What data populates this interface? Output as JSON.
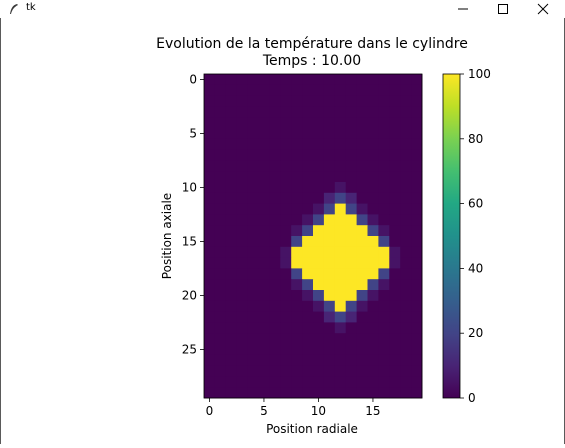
{
  "window": {
    "title": "tk",
    "app_icon": "feather-icon",
    "controls": [
      "minimize-icon",
      "maximize-icon",
      "close-icon"
    ]
  },
  "chart_data": {
    "type": "heatmap",
    "title": "Evolution de la température dans le cylindre",
    "subtitle": "Temps : 10.00",
    "xlabel": "Position radiale",
    "ylabel": "Position axiale",
    "x_ticks": [
      "0",
      "5",
      "10",
      "15"
    ],
    "y_ticks": [
      "0",
      "5",
      "10",
      "15",
      "20",
      "25"
    ],
    "colorbar_ticks": [
      "0",
      "20",
      "40",
      "60",
      "80",
      "100"
    ],
    "colormap": "viridis",
    "vmin": 0,
    "vmax": 100,
    "n_rows": 30,
    "n_cols": 20,
    "hot_center": [
      12,
      16.5
    ],
    "hot_shape": "diamond",
    "values_description_rows": [
      [
        0,
        0,
        0,
        0,
        0,
        0,
        0,
        0,
        0,
        0,
        0,
        0,
        0,
        0,
        0,
        0,
        0,
        0,
        0,
        0
      ],
      [
        0,
        0,
        0,
        0,
        0,
        0,
        0,
        0,
        0,
        0,
        0,
        0,
        0,
        0,
        0,
        0,
        0,
        0,
        0,
        0
      ],
      [
        0,
        0,
        0,
        0,
        0,
        0,
        0,
        0,
        0,
        0,
        0,
        0,
        0,
        0,
        0,
        0,
        0,
        0,
        0,
        0
      ],
      [
        0,
        0,
        0,
        0,
        0,
        0,
        0,
        0,
        0,
        0,
        0,
        0,
        0,
        0,
        0,
        0,
        0,
        0,
        0,
        0
      ],
      [
        0,
        0,
        0,
        0,
        0,
        0,
        0,
        0,
        0,
        0,
        0,
        0,
        0,
        0,
        0,
        0,
        0,
        0,
        0,
        0
      ],
      [
        0,
        0,
        0,
        0,
        0,
        0,
        0,
        0,
        0,
        0,
        0,
        0,
        0,
        0,
        0,
        0,
        0,
        0,
        0,
        0
      ],
      [
        0,
        0,
        0,
        0,
        0,
        0,
        0,
        0,
        0,
        0,
        0,
        0,
        0,
        0,
        0,
        0,
        0,
        0,
        0,
        0
      ],
      [
        0,
        0,
        0,
        0,
        0,
        0,
        0,
        0,
        0,
        0,
        0,
        0,
        0,
        0,
        0,
        0,
        0,
        0,
        0,
        0
      ],
      [
        0,
        0,
        0,
        0,
        0,
        0,
        0,
        0,
        0,
        0,
        0,
        0,
        0,
        0,
        0,
        0,
        0,
        0,
        0,
        0
      ],
      [
        0,
        0,
        0,
        0,
        0,
        0,
        0,
        0,
        0,
        0,
        0,
        0,
        0,
        0,
        0,
        0,
        0,
        0,
        0,
        0
      ],
      [
        0,
        0,
        0,
        0,
        0,
        0,
        0,
        0,
        0,
        0,
        0,
        0,
        5,
        0,
        0,
        0,
        0,
        0,
        0,
        0
      ],
      [
        0,
        0,
        0,
        0,
        0,
        0,
        0,
        0,
        0,
        0,
        0,
        10,
        20,
        10,
        0,
        0,
        0,
        0,
        0,
        0
      ],
      [
        0,
        0,
        0,
        0,
        0,
        0,
        0,
        0,
        0,
        0,
        5,
        20,
        100,
        20,
        5,
        0,
        0,
        0,
        0,
        0
      ],
      [
        0,
        0,
        0,
        0,
        0,
        0,
        0,
        0,
        0,
        5,
        20,
        100,
        100,
        100,
        20,
        5,
        0,
        0,
        0,
        0
      ],
      [
        0,
        0,
        0,
        0,
        0,
        0,
        0,
        0,
        5,
        20,
        100,
        100,
        100,
        100,
        100,
        20,
        5,
        0,
        0,
        0
      ],
      [
        0,
        0,
        0,
        0,
        0,
        0,
        0,
        0,
        20,
        100,
        100,
        100,
        100,
        100,
        100,
        100,
        20,
        0,
        0,
        0
      ],
      [
        0,
        0,
        0,
        0,
        0,
        0,
        0,
        5,
        100,
        100,
        100,
        100,
        100,
        100,
        100,
        100,
        100,
        5,
        0,
        0
      ],
      [
        0,
        0,
        0,
        0,
        0,
        0,
        0,
        5,
        100,
        100,
        100,
        100,
        100,
        100,
        100,
        100,
        100,
        5,
        0,
        0
      ],
      [
        0,
        0,
        0,
        0,
        0,
        0,
        0,
        0,
        20,
        100,
        100,
        100,
        100,
        100,
        100,
        100,
        20,
        0,
        0,
        0
      ],
      [
        0,
        0,
        0,
        0,
        0,
        0,
        0,
        0,
        5,
        20,
        100,
        100,
        100,
        100,
        100,
        20,
        5,
        0,
        0,
        0
      ],
      [
        0,
        0,
        0,
        0,
        0,
        0,
        0,
        0,
        0,
        5,
        20,
        100,
        100,
        100,
        20,
        5,
        0,
        0,
        0,
        0
      ],
      [
        0,
        0,
        0,
        0,
        0,
        0,
        0,
        0,
        0,
        0,
        5,
        20,
        100,
        20,
        5,
        0,
        0,
        0,
        0,
        0
      ],
      [
        0,
        0,
        0,
        0,
        0,
        0,
        0,
        0,
        0,
        0,
        0,
        10,
        20,
        10,
        0,
        0,
        0,
        0,
        0,
        0
      ],
      [
        0,
        0,
        0,
        0,
        0,
        0,
        0,
        0,
        0,
        0,
        0,
        0,
        5,
        0,
        0,
        0,
        0,
        0,
        0,
        0
      ],
      [
        0,
        0,
        0,
        0,
        0,
        0,
        0,
        0,
        0,
        0,
        0,
        0,
        0,
        0,
        0,
        0,
        0,
        0,
        0,
        0
      ],
      [
        0,
        0,
        0,
        0,
        0,
        0,
        0,
        0,
        0,
        0,
        0,
        0,
        0,
        0,
        0,
        0,
        0,
        0,
        0,
        0
      ],
      [
        0,
        0,
        0,
        0,
        0,
        0,
        0,
        0,
        0,
        0,
        0,
        0,
        0,
        0,
        0,
        0,
        0,
        0,
        0,
        0
      ],
      [
        0,
        0,
        0,
        0,
        0,
        0,
        0,
        0,
        0,
        0,
        0,
        0,
        0,
        0,
        0,
        0,
        0,
        0,
        0,
        0
      ],
      [
        0,
        0,
        0,
        0,
        0,
        0,
        0,
        0,
        0,
        0,
        0,
        0,
        0,
        0,
        0,
        0,
        0,
        0,
        0,
        0
      ],
      [
        0,
        0,
        0,
        0,
        0,
        0,
        0,
        0,
        0,
        0,
        0,
        0,
        0,
        0,
        0,
        0,
        0,
        0,
        0,
        0
      ]
    ]
  }
}
